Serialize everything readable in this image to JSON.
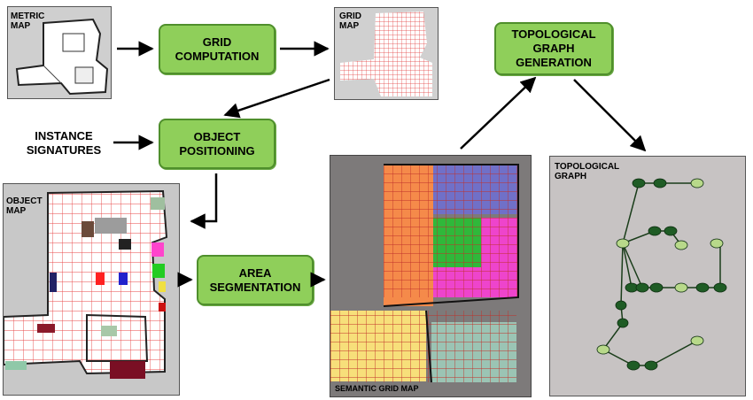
{
  "labels": {
    "metric_map": "METRIC\nMAP",
    "grid_map": "GRID\nMAP",
    "object_map": "OBJECT\nMAP",
    "semantic_grid_map": "SEMANTIC GRID MAP",
    "topological_graph": "TOPOLOGICAL\nGRAPH",
    "instance_signatures": "INSTANCE\nSIGNATURES"
  },
  "process_boxes": {
    "grid_computation": "GRID\nCOMPUTATION",
    "object_positioning": "OBJECT\nPOSITIONING",
    "area_segmentation": "AREA\nSEGMENTATION",
    "topological_graph_generation": "TOPOLOGICAL\nGRAPH\nGENERATION"
  },
  "colors": {
    "process_fill": "#8fcf5a",
    "process_border": "#4f8f2c",
    "grid_line": "#e23a3a",
    "map_background": "#c7c3c3",
    "node_dark": "#1f5c25",
    "node_light": "#b8d98a",
    "seg_orange": "#f58a4a",
    "seg_purple": "#7070c8",
    "seg_green": "#2fb83a",
    "seg_magenta": "#ee44cc",
    "seg_yellow": "#f7df7a",
    "seg_teal": "#9bc4b4"
  }
}
